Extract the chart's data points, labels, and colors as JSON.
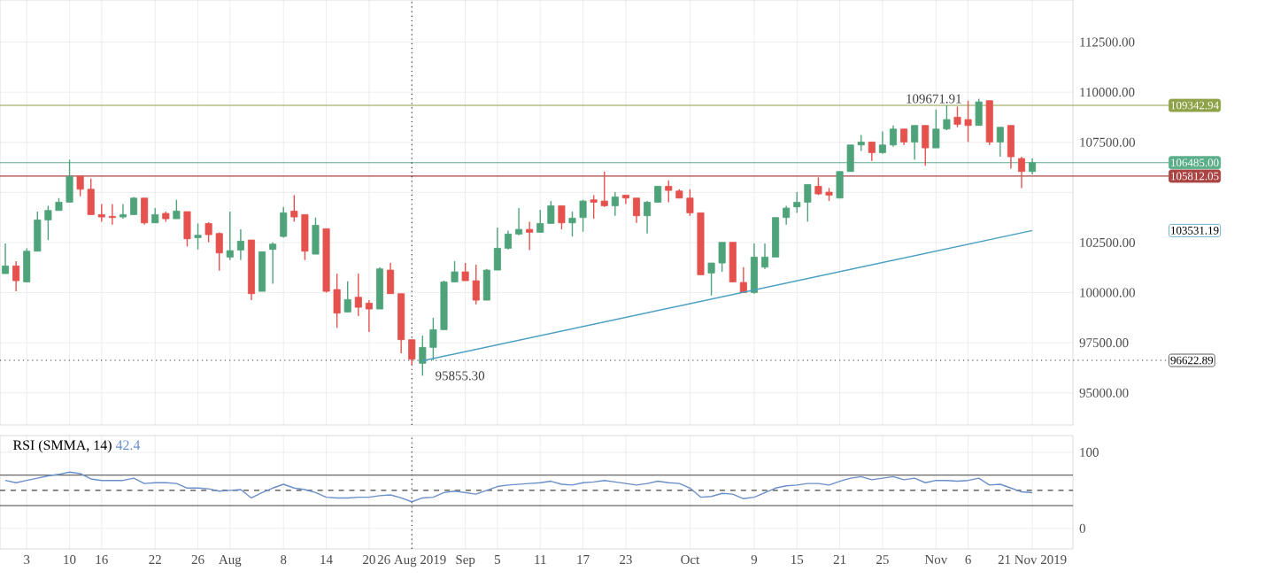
{
  "chart_data": [
    {
      "type": "candlestick",
      "categories": [
        null,
        null,
        "3",
        null,
        null,
        null,
        "10",
        null,
        null,
        "16",
        null,
        null,
        null,
        null,
        "22",
        null,
        null,
        null,
        "26",
        null,
        null,
        "Aug",
        null,
        null,
        null,
        null,
        "8",
        null,
        null,
        null,
        "14",
        null,
        null,
        null,
        "20",
        null,
        null,
        null,
        "26 Aug 2019",
        null,
        null,
        null,
        null,
        "Sep",
        null,
        null,
        "5",
        null,
        null,
        null,
        "11",
        null,
        null,
        null,
        "17",
        null,
        null,
        null,
        "23",
        null,
        null,
        null,
        null,
        null,
        "Oct",
        null,
        null,
        null,
        null,
        null,
        "9",
        null,
        null,
        null,
        "15",
        null,
        null,
        null,
        "21",
        null,
        null,
        null,
        "25",
        null,
        null,
        null,
        null,
        "Nov",
        null,
        null,
        "6",
        null,
        null,
        null,
        null,
        null,
        "21 Nov 2019"
      ],
      "ohlc": [
        [
          100950,
          102451,
          100950,
          101332
        ],
        [
          101332,
          101568,
          100066,
          100596
        ],
        [
          100537,
          102215,
          100508,
          102068
        ],
        [
          102068,
          104041,
          102068,
          103629
        ],
        [
          103629,
          104335,
          102628,
          104100
        ],
        [
          104100,
          104718,
          104100,
          104512
        ],
        [
          104512,
          106631,
          104512,
          105807
        ],
        [
          105807,
          105807,
          104806,
          105159
        ],
        [
          105159,
          105689,
          103893,
          103893
        ],
        [
          103893,
          104423,
          103540,
          103776
        ],
        [
          103805,
          104423,
          103393,
          103746
        ],
        [
          103776,
          104423,
          103687,
          103893
        ],
        [
          103893,
          104777,
          103893,
          104718
        ],
        [
          104718,
          104718,
          103393,
          103481
        ],
        [
          103481,
          104217,
          103481,
          103893
        ],
        [
          103952,
          104041,
          103540,
          103687
        ],
        [
          103687,
          104630,
          103687,
          104070
        ],
        [
          104041,
          104041,
          102303,
          102686
        ],
        [
          102745,
          103452,
          102156,
          102863
        ],
        [
          103452,
          103511,
          102510,
          102892
        ],
        [
          102951,
          103010,
          101097,
          101980
        ],
        [
          101774,
          104041,
          101627,
          102098
        ],
        [
          102127,
          103157,
          101627,
          102569
        ],
        [
          102628,
          102628,
          99625,
          99948
        ],
        [
          100066,
          102039,
          100066,
          102039
        ],
        [
          102156,
          102510,
          100449,
          102421
        ],
        [
          102804,
          104276,
          102745,
          103982
        ],
        [
          104070,
          104865,
          103540,
          103776
        ],
        [
          103893,
          103893,
          101627,
          102068
        ],
        [
          101921,
          103746,
          101921,
          103364
        ],
        [
          103187,
          103187,
          100007,
          100066
        ],
        [
          100155,
          100950,
          98241,
          98977
        ],
        [
          99036,
          100567,
          99036,
          99654
        ],
        [
          99772,
          100950,
          98830,
          99271
        ],
        [
          99477,
          99625,
          98035,
          99183
        ],
        [
          99183,
          101273,
          99183,
          101185
        ],
        [
          101126,
          101479,
          99948,
          99948
        ],
        [
          99948,
          99948,
          96975,
          97652
        ],
        [
          97652,
          97652,
          96387,
          96681
        ],
        [
          96475,
          97858,
          95855.3,
          97270
        ],
        [
          97270,
          98742,
          96622,
          98153
        ],
        [
          98153,
          100596,
          98153,
          100537
        ],
        [
          100537,
          101568,
          100537,
          101038
        ],
        [
          101038,
          101479,
          100596,
          100596
        ],
        [
          100596,
          101391,
          99419,
          99625
        ],
        [
          99625,
          101185,
          99625,
          101126
        ],
        [
          101126,
          103246,
          101126,
          102215
        ],
        [
          102215,
          103099,
          102156,
          102922
        ],
        [
          102922,
          104217,
          102863,
          103157
        ],
        [
          103157,
          103540,
          102127,
          103010
        ],
        [
          103010,
          104129,
          103010,
          103452
        ],
        [
          103452,
          104571,
          103452,
          104335
        ],
        [
          104335,
          104335,
          103157,
          103481
        ],
        [
          103481,
          104041,
          102804,
          103717
        ],
        [
          103746,
          104630,
          103040,
          104571
        ],
        [
          104630,
          104865,
          103687,
          104512
        ],
        [
          104571,
          106043,
          104276,
          104335
        ],
        [
          104335,
          105012,
          103835,
          104777
        ],
        [
          104865,
          104865,
          104423,
          104718
        ],
        [
          104718,
          104718,
          103481,
          103835
        ],
        [
          103835,
          104571,
          102951,
          104512
        ],
        [
          104512,
          105307,
          104512,
          105307
        ],
        [
          105307,
          105601,
          104512,
          105101
        ],
        [
          105071,
          105159,
          104718,
          104718
        ],
        [
          104718,
          105159,
          103835,
          103982
        ],
        [
          103982,
          103982,
          100891,
          100891
        ],
        [
          100980,
          101479,
          99860,
          101479
        ],
        [
          101479,
          102510,
          101038,
          102510
        ],
        [
          102510,
          102510,
          100537,
          100537
        ],
        [
          100508,
          101274,
          100008,
          100008
        ],
        [
          100008,
          102452,
          99949,
          101775
        ],
        [
          101274,
          102452,
          101186,
          101775
        ],
        [
          101775,
          103747,
          101775,
          103747
        ],
        [
          103747,
          104336,
          103394,
          104218
        ],
        [
          104277,
          105013,
          103983,
          104512
        ],
        [
          104512,
          105396,
          103541,
          105396
        ],
        [
          105307,
          105749,
          104866,
          104925
        ],
        [
          105013,
          105219,
          104571,
          104866
        ],
        [
          104718,
          106043,
          104718,
          106043
        ],
        [
          106043,
          107368,
          106043,
          107368
        ],
        [
          107368,
          107869,
          107074,
          107515
        ],
        [
          107515,
          107515,
          106573,
          106986
        ],
        [
          106986,
          108045,
          106927,
          107368
        ],
        [
          107368,
          108340,
          107280,
          108163
        ],
        [
          108163,
          108163,
          107368,
          107515
        ],
        [
          107515,
          108340,
          106632,
          108340
        ],
        [
          108340,
          108340,
          106338,
          107221
        ],
        [
          107221,
          109135,
          107221,
          108163
        ],
        [
          108163,
          109341,
          108104,
          108634
        ],
        [
          108752,
          109282,
          108251,
          108399
        ],
        [
          108634,
          109576,
          107515,
          108340
        ],
        [
          108340,
          109671.91,
          108340,
          109517
        ],
        [
          109576,
          109576,
          107368,
          107515
        ],
        [
          107515,
          108251,
          106780,
          108251
        ],
        [
          108340,
          108340,
          106191,
          106780
        ],
        [
          106691,
          106780,
          105219,
          106043
        ],
        [
          106043,
          106691,
          105896,
          106485
        ]
      ],
      "colors": [
        "#4fa37a",
        "#e5524e",
        "#4fa37a",
        "#4fa37a",
        "#4fa37a",
        "#4fa37a",
        "#4fa37a",
        "#e5524e",
        "#e5524e",
        "#e5524e",
        "#e5524e",
        "#4fa37a",
        "#4fa37a",
        "#e5524e",
        "#4fa37a",
        "#e5524e",
        "#4fa37a",
        "#e5524e",
        "#4fa37a",
        "#e5524e",
        "#e5524e",
        "#4fa37a",
        "#4fa37a",
        "#e5524e",
        "#4fa37a",
        "#4fa37a",
        "#4fa37a",
        "#e5524e",
        "#e5524e",
        "#4fa37a",
        "#e5524e",
        "#e5524e",
        "#4fa37a",
        "#e5524e",
        "#e5524e",
        "#4fa37a",
        "#e5524e",
        "#e5524e",
        "#e5524e",
        "#4fa37a",
        "#4fa37a",
        "#4fa37a",
        "#4fa37a",
        "#e5524e",
        "#e5524e",
        "#4fa37a",
        "#4fa37a",
        "#4fa37a",
        "#4fa37a",
        "#e5524e",
        "#4fa37a",
        "#4fa37a",
        "#e5524e",
        "#4fa37a",
        "#4fa37a",
        "#e5524e",
        "#e5524e",
        "#4fa37a",
        "#e5524e",
        "#e5524e",
        "#4fa37a",
        "#4fa37a",
        "#e5524e",
        "#e5524e",
        "#e5524e",
        "#e5524e",
        "#4fa37a",
        "#4fa37a",
        "#e5524e",
        "#e5524e",
        "#4fa37a",
        "#4fa37a",
        "#4fa37a",
        "#4fa37a",
        "#4fa37a",
        "#4fa37a",
        "#e5524e",
        "#e5524e",
        "#4fa37a",
        "#4fa37a",
        "#4fa37a",
        "#e5524e",
        "#4fa37a",
        "#4fa37a",
        "#e5524e",
        "#4fa37a",
        "#e5524e",
        "#4fa37a",
        "#4fa37a",
        "#e5524e",
        "#e5524e",
        "#4fa37a",
        "#e5524e",
        "#4fa37a",
        "#e5524e",
        "#e5524e",
        "#4fa37a"
      ],
      "series": [
        {
          "type": "line",
          "color": "#4a9fc0",
          "values": [
            null,
            null,
            null,
            null,
            null,
            null,
            null,
            null,
            null,
            null,
            null,
            null,
            null,
            null,
            null,
            null,
            null,
            null,
            null,
            null,
            null,
            null,
            null,
            null,
            null,
            null,
            null,
            null,
            null,
            null,
            null,
            null,
            null,
            null,
            null,
            null,
            null,
            null,
            null,
            96600,
            null,
            null,
            null,
            null,
            null,
            null,
            null,
            null,
            null,
            null,
            null,
            null,
            null,
            null,
            null,
            null,
            null,
            null,
            null,
            null,
            null,
            null,
            null,
            null,
            null,
            null,
            null,
            null,
            null,
            null,
            null,
            null,
            null,
            null,
            null,
            null,
            null,
            null,
            null,
            null,
            null,
            null,
            null,
            null,
            null,
            null,
            null,
            null,
            null,
            null,
            null,
            null,
            null,
            null,
            null,
            null,
            103100
          ]
        }
      ],
      "ylim": [
        93400,
        114600
      ],
      "yticks": [
        {
          "value": 95000,
          "label": "95000.00"
        },
        {
          "value": 97500,
          "label": "97500.00"
        },
        {
          "value": 100000,
          "label": "100000.00"
        },
        {
          "value": 102500,
          "label": "102500.00"
        },
        {
          "value": 105000,
          "label": null
        },
        {
          "value": 107500,
          "label": "107500.00"
        },
        {
          "value": 110000,
          "label": "110000.00"
        },
        {
          "value": 112500,
          "label": "112500.00"
        }
      ],
      "tick_labels": "y",
      "grid": true,
      "ref_lines": [
        {
          "axis": "y",
          "value": 106485,
          "label": "106485.00",
          "color": "#5aae88",
          "line_style": "solid"
        },
        {
          "axis": "y",
          "value": 105812.05,
          "label": "105812.05",
          "color": "#a94442",
          "line_style": "solid"
        },
        {
          "axis": "y",
          "value": 109342.94,
          "label": "109342.94",
          "color": "#8ea247",
          "line_style": "solid"
        },
        {
          "axis": "y",
          "value": 96622.89,
          "label": "96622.89",
          "color": "#333333",
          "line_style": "dotted"
        },
        {
          "axis": "x",
          "value": "26 Aug 2019",
          "color": "#333333",
          "line_style": "dotted"
        }
      ],
      "annotations": [
        "95855.30",
        {
          "text": "109671.91",
          "y": 109671.91
        },
        "103531.19"
      ]
    },
    {
      "type": "line",
      "title": "RSI (SMMA, 14)",
      "categories": [
        null,
        null,
        "3",
        null,
        null,
        null,
        "10",
        null,
        null,
        "16",
        null,
        null,
        null,
        null,
        "22",
        null,
        null,
        null,
        "26",
        null,
        null,
        "Aug",
        null,
        null,
        null,
        null,
        "8",
        null,
        null,
        null,
        "14",
        null,
        null,
        null,
        "20",
        null,
        null,
        null,
        "26 Aug 2019",
        null,
        null,
        null,
        null,
        "Sep",
        null,
        null,
        "5",
        null,
        null,
        null,
        "11",
        null,
        null,
        null,
        "17",
        null,
        null,
        null,
        "23",
        null,
        null,
        null,
        null,
        null,
        "Oct",
        null,
        null,
        null,
        null,
        null,
        "9",
        null,
        null,
        null,
        "15",
        null,
        null,
        null,
        "21",
        null,
        null,
        null,
        "25",
        null,
        null,
        null,
        null,
        "Nov",
        null,
        null,
        "6",
        null,
        null,
        null,
        null,
        null,
        "21 Nov 2019"
      ],
      "series": [
        {
          "color": "#6b8fc9",
          "values": [
            63,
            60,
            63,
            66,
            69,
            71,
            74,
            72,
            65,
            63,
            63,
            63,
            66,
            59,
            60,
            60,
            59,
            53,
            53,
            52,
            49,
            50,
            51,
            40,
            47,
            53,
            58,
            53,
            51,
            47,
            41,
            40,
            40,
            41,
            41,
            43,
            44,
            40,
            35,
            40,
            41,
            47,
            49,
            47,
            45,
            50,
            55,
            57,
            58,
            59,
            60,
            62,
            58,
            57,
            60,
            61,
            63,
            61,
            59,
            57,
            59,
            62,
            60,
            59,
            53,
            41,
            42,
            46,
            45,
            39,
            41,
            47,
            53,
            56,
            57,
            59,
            59,
            57,
            62,
            66,
            68,
            64,
            66,
            68,
            64,
            66,
            60,
            63,
            63,
            62,
            63,
            66,
            57,
            58,
            53,
            48,
            47
          ]
        }
      ],
      "ylim": [
        -27,
        122
      ],
      "yticks": [
        0,
        100
      ],
      "grid": true,
      "ref_lines": [
        {
          "axis": "y",
          "value": 70,
          "color": "#666666",
          "line_style": "solid"
        },
        {
          "axis": "y",
          "value": 50,
          "color": "#444444",
          "line_style": "dashed"
        },
        {
          "axis": "y",
          "value": 30,
          "color": "#666666",
          "line_style": "solid"
        },
        {
          "axis": "x",
          "value": "26 Aug 2019",
          "color": "#333333",
          "line_style": "dotted"
        }
      ],
      "annotations": [
        "42.4"
      ]
    }
  ]
}
